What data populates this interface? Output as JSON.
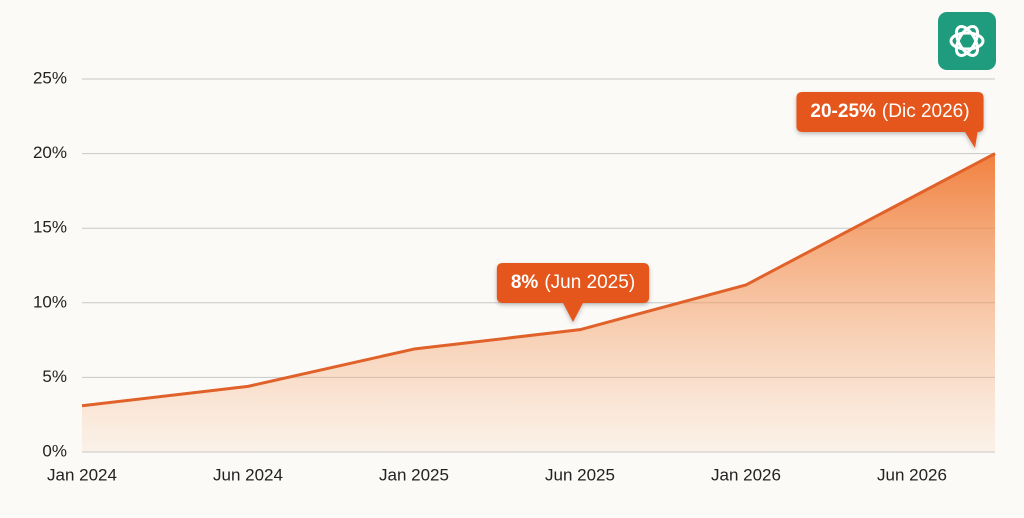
{
  "chart_data": {
    "type": "area",
    "x": [
      0,
      1,
      2,
      3,
      4,
      5.5
    ],
    "xlim": [
      0,
      5.5
    ],
    "xticks": [
      {
        "value": 0,
        "label": "Jan 2024"
      },
      {
        "value": 1,
        "label": "Jun 2024"
      },
      {
        "value": 2,
        "label": "Jan 2025"
      },
      {
        "value": 3,
        "label": "Jun 2025"
      },
      {
        "value": 4,
        "label": "Jan 2026"
      },
      {
        "value": 5,
        "label": "Jun 2026"
      }
    ],
    "values": [
      3.1,
      4.4,
      6.9,
      8.2,
      11.2,
      20
    ],
    "ylim": [
      0,
      25
    ],
    "yticks": [
      {
        "value": 0,
        "label": "0%"
      },
      {
        "value": 5,
        "label": "5%"
      },
      {
        "value": 10,
        "label": "10%"
      },
      {
        "value": 15,
        "label": "15%"
      },
      {
        "value": 20,
        "label": "20%"
      },
      {
        "value": 25,
        "label": "25%"
      }
    ],
    "grid": true,
    "color": "#e0622a",
    "annotations": [
      {
        "bold": "8%",
        "text": "(Jun 2025)"
      },
      {
        "bold": "20-25%",
        "text": "(Dic 2026)"
      }
    ]
  }
}
